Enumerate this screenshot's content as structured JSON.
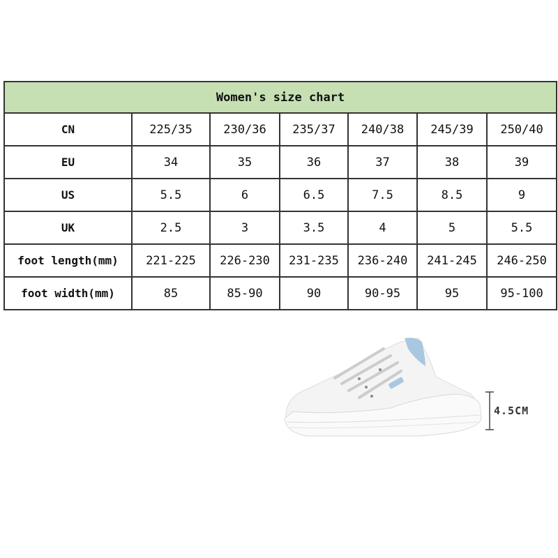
{
  "size_chart": {
    "title": "Women's size chart",
    "rows": [
      {
        "label": "CN",
        "values": [
          "225/35",
          "230/36",
          "235/37",
          "240/38",
          "245/39",
          "250/40"
        ]
      },
      {
        "label": "EU",
        "values": [
          "34",
          "35",
          "36",
          "37",
          "38",
          "39"
        ]
      },
      {
        "label": "US",
        "values": [
          "5.5",
          "6",
          "6.5",
          "7.5",
          "8.5",
          "9"
        ]
      },
      {
        "label": "UK",
        "values": [
          "2.5",
          "3",
          "3.5",
          "4",
          "5",
          "5.5"
        ]
      },
      {
        "label": "foot length(mm)",
        "values": [
          "221-225",
          "226-230",
          "231-235",
          "236-240",
          "241-245",
          "246-250"
        ]
      },
      {
        "label": "foot width(mm)",
        "values": [
          "85",
          "85-90",
          "90",
          "90-95",
          "95",
          "95-100"
        ]
      }
    ],
    "header_color": "#c6e0b4"
  },
  "product": {
    "measurement_label": "4.5CM",
    "accent_color": "#a9c7e0"
  }
}
